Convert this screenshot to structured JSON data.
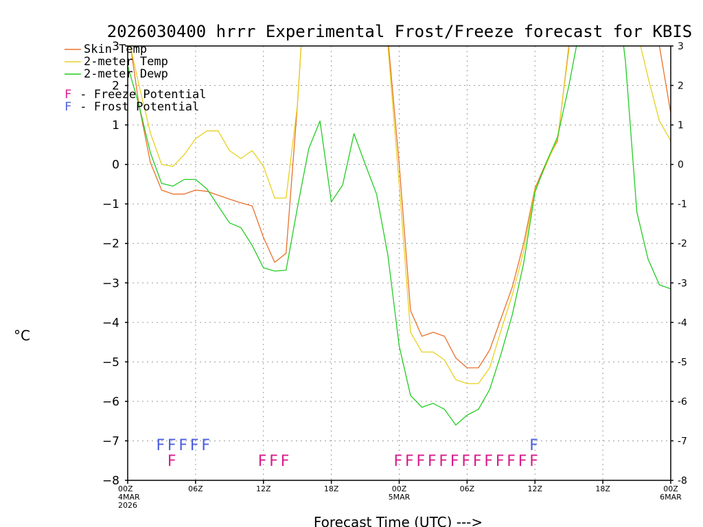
{
  "chart_data": {
    "type": "line",
    "title": "2026030400 hrrr Experimental Frost/Freeze forecast for KBIS",
    "xlabel": "Forecast Time (UTC) --->",
    "ylabel": "°C",
    "ylim": [
      -8,
      3
    ],
    "xlim": [
      0,
      48
    ],
    "y_ticks": [
      3,
      2,
      1,
      0,
      -1,
      -2,
      -3,
      -4,
      -5,
      -6,
      -7,
      -8
    ],
    "right_ticks": [
      "3",
      "2",
      "1",
      "0",
      "-1",
      "-2",
      "-3",
      "-4",
      "-5",
      "-6",
      "-7",
      "-8"
    ],
    "x_ticks": [
      {
        "x": 0,
        "label": "00Z",
        "sub1": "4MAR",
        "sub2": "2026"
      },
      {
        "x": 6,
        "label": "06Z",
        "sub1": "",
        "sub2": ""
      },
      {
        "x": 12,
        "label": "12Z",
        "sub1": "",
        "sub2": ""
      },
      {
        "x": 18,
        "label": "18Z",
        "sub1": "",
        "sub2": ""
      },
      {
        "x": 24,
        "label": "00Z",
        "sub1": "5MAR",
        "sub2": ""
      },
      {
        "x": 30,
        "label": "06Z",
        "sub1": "",
        "sub2": ""
      },
      {
        "x": 36,
        "label": "12Z",
        "sub1": "",
        "sub2": ""
      },
      {
        "x": 42,
        "label": "18Z",
        "sub1": "",
        "sub2": ""
      },
      {
        "x": 48,
        "label": "00Z",
        "sub1": "6MAR",
        "sub2": ""
      }
    ],
    "grid": true,
    "legend": [
      {
        "name": "Skin Temp",
        "color": "#e8702a"
      },
      {
        "name": "2-meter Temp",
        "color": "#e8d020"
      },
      {
        "name": "2-meter Dewp",
        "color": "#22cc22"
      }
    ],
    "flag_legend": [
      {
        "letter": "F",
        "text": " - Freeze Potential",
        "color": "#d81b8c"
      },
      {
        "letter": "F",
        "text": " - Frost Potential",
        "color": "#4a5ee0"
      }
    ],
    "series": [
      {
        "name": "Skin Temp",
        "color": "#e8702a",
        "x": [
          0,
          1,
          2,
          3,
          4,
          5,
          6,
          7,
          8,
          9,
          10,
          11,
          12,
          13,
          14,
          15,
          16,
          22,
          23,
          24,
          25,
          26,
          27,
          28,
          29,
          30,
          31,
          32,
          33,
          34,
          35,
          36,
          37,
          38,
          39,
          40,
          41,
          44,
          45,
          46,
          47,
          48
        ],
        "y": [
          3.5,
          1.5,
          0.05,
          -0.65,
          -0.75,
          -0.75,
          -0.65,
          -0.68,
          -0.78,
          -0.88,
          -0.97,
          -1.05,
          -1.85,
          -2.48,
          -2.25,
          1.5,
          6,
          6,
          3.2,
          0,
          -3.7,
          -4.35,
          -4.25,
          -4.35,
          -4.9,
          -5.15,
          -5.15,
          -4.7,
          -3.9,
          -3.1,
          -2.0,
          -0.6,
          0.05,
          0.6,
          3.0,
          6,
          6,
          6,
          6,
          3.2,
          3.0,
          1.3
        ]
      },
      {
        "name": "2-meter Temp",
        "color": "#e8d020",
        "x": [
          0,
          1,
          2,
          3,
          4,
          5,
          6,
          7,
          8,
          9,
          10,
          11,
          12,
          13,
          14,
          15,
          16,
          22,
          23,
          24,
          25,
          26,
          27,
          28,
          29,
          30,
          31,
          32,
          33,
          34,
          35,
          36,
          37,
          38,
          39,
          40,
          41,
          44,
          45,
          46,
          47,
          48
        ],
        "y": [
          3.3,
          2.0,
          0.8,
          0.0,
          -0.05,
          0.25,
          0.65,
          0.85,
          0.85,
          0.35,
          0.15,
          0.35,
          -0.05,
          -0.85,
          -0.85,
          1.5,
          6,
          6,
          3.0,
          -0.5,
          -4.25,
          -4.75,
          -4.75,
          -4.95,
          -5.45,
          -5.55,
          -5.55,
          -5.15,
          -4.2,
          -3.3,
          -2.2,
          -0.65,
          0.0,
          0.65,
          2.9,
          6,
          6,
          6,
          3.4,
          2.2,
          1.1,
          0.6
        ]
      },
      {
        "name": "2-meter Dewp",
        "color": "#22cc22",
        "x": [
          0,
          1,
          2,
          3,
          4,
          5,
          6,
          7,
          8,
          9,
          10,
          11,
          12,
          13,
          14,
          15,
          16,
          17,
          18,
          19,
          20,
          21,
          22,
          23,
          24,
          25,
          26,
          27,
          28,
          29,
          30,
          31,
          32,
          33,
          34,
          35,
          36,
          37,
          38,
          39,
          40,
          41,
          42,
          43,
          44,
          45,
          46,
          47,
          48
        ],
        "y": [
          2.5,
          1.5,
          0.3,
          -0.48,
          -0.55,
          -0.38,
          -0.38,
          -0.62,
          -1.05,
          -1.48,
          -1.6,
          -2.05,
          -2.62,
          -2.7,
          -2.68,
          -1.1,
          0.4,
          1.1,
          -0.95,
          -0.52,
          0.78,
          0.0,
          -0.75,
          -2.3,
          -4.6,
          -5.85,
          -6.15,
          -6.05,
          -6.2,
          -6.6,
          -6.35,
          -6.2,
          -5.7,
          -4.8,
          -3.8,
          -2.5,
          -0.7,
          0.05,
          0.7,
          2.0,
          3.5,
          5,
          6,
          5,
          2.6,
          -1.2,
          -2.4,
          -3.05,
          -3.15
        ]
      }
    ],
    "frost_flags": {
      "color": "#4a5ee0",
      "letter": "F",
      "y": -7.1,
      "x": [
        3,
        4,
        5,
        6,
        7,
        36
      ]
    },
    "freeze_flags": {
      "color": "#d81b8c",
      "letter": "F",
      "y": -7.5,
      "x": [
        4,
        12,
        13,
        14,
        24,
        25,
        26,
        27,
        28,
        29,
        30,
        31,
        32,
        33,
        34,
        35,
        36
      ]
    }
  }
}
